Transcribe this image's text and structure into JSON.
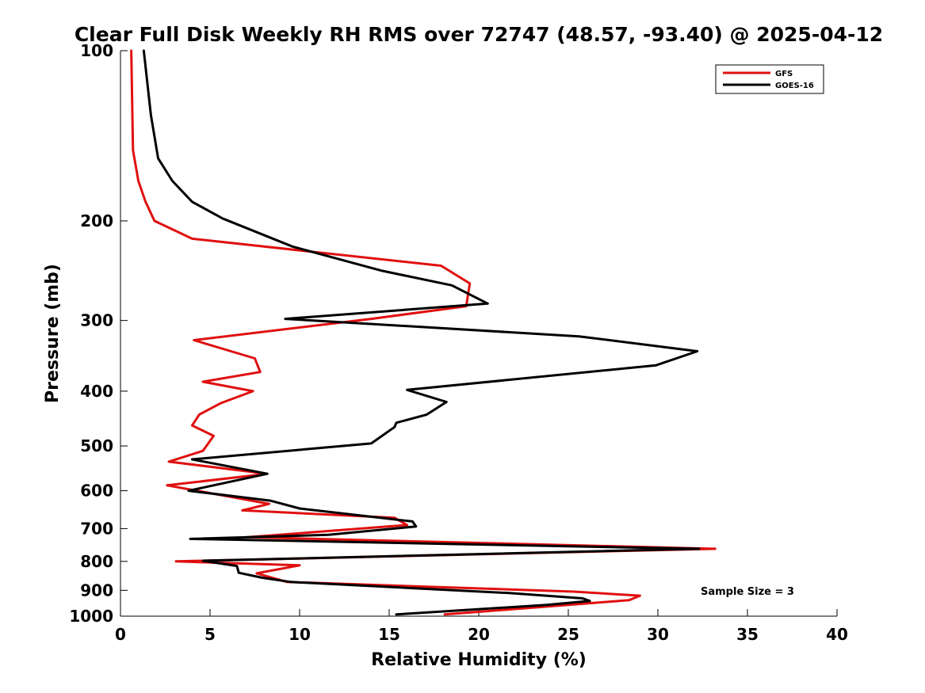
{
  "chart_data": {
    "type": "line",
    "title": "Clear Full Disk Weekly RH RMS over 72747 (48.57, -93.40) @ 2025-04-12",
    "xlabel": "Relative Humidity (%)",
    "ylabel": "Pressure (mb)",
    "xlim": [
      0,
      40
    ],
    "ylim": [
      100,
      1000
    ],
    "yscale": "log",
    "y_reversed": true,
    "xticks": [
      0,
      5,
      10,
      15,
      20,
      25,
      30,
      35,
      40
    ],
    "xtick_labels": [
      "0",
      "5",
      "10",
      "15",
      "20",
      "25",
      "30",
      "35",
      "40"
    ],
    "yticks": [
      100,
      200,
      300,
      400,
      500,
      600,
      700,
      800,
      900,
      1000
    ],
    "ytick_labels": [
      "100",
      "200",
      "300",
      "400",
      "500",
      "600",
      "700",
      "800",
      "900",
      "1000"
    ],
    "grid": false,
    "legend_position": "top-right",
    "annotation": "Sample Size = 3",
    "series": [
      {
        "name": "GFS",
        "color": "#e01010",
        "points": [
          [
            0.6,
            100
          ],
          [
            0.7,
            150
          ],
          [
            1.0,
            170
          ],
          [
            1.4,
            185
          ],
          [
            1.9,
            200
          ],
          [
            4.0,
            215
          ],
          [
            17.9,
            240
          ],
          [
            19.5,
            258
          ],
          [
            19.3,
            283
          ],
          [
            14.0,
            298
          ],
          [
            4.1,
            325
          ],
          [
            7.5,
            350
          ],
          [
            7.8,
            370
          ],
          [
            4.6,
            385
          ],
          [
            7.4,
            400
          ],
          [
            5.6,
            420
          ],
          [
            4.4,
            440
          ],
          [
            4.0,
            460
          ],
          [
            5.2,
            480
          ],
          [
            4.6,
            510
          ],
          [
            2.7,
            533
          ],
          [
            8.2,
            560
          ],
          [
            2.6,
            587
          ],
          [
            8.3,
            633
          ],
          [
            6.8,
            650
          ],
          [
            15.3,
            670
          ],
          [
            16.0,
            690
          ],
          [
            7.1,
            725
          ],
          [
            33.2,
            760
          ],
          [
            3.1,
            800
          ],
          [
            10.0,
            813
          ],
          [
            7.6,
            840
          ],
          [
            9.3,
            870
          ],
          [
            25.3,
            905
          ],
          [
            29.0,
            920
          ],
          [
            28.4,
            937
          ],
          [
            18.1,
            993
          ]
        ]
      },
      {
        "name": "GOES-16",
        "color": "#000000",
        "points": [
          [
            1.3,
            100
          ],
          [
            1.7,
            130
          ],
          [
            2.1,
            155
          ],
          [
            2.9,
            170
          ],
          [
            4.0,
            185
          ],
          [
            5.7,
            198
          ],
          [
            9.6,
            222
          ],
          [
            14.6,
            245
          ],
          [
            18.5,
            260
          ],
          [
            20.5,
            280
          ],
          [
            9.2,
            298
          ],
          [
            25.6,
            320
          ],
          [
            32.2,
            340
          ],
          [
            29.9,
            360
          ],
          [
            16.0,
            398
          ],
          [
            18.2,
            418
          ],
          [
            17.1,
            440
          ],
          [
            15.4,
            455
          ],
          [
            15.3,
            463
          ],
          [
            14.0,
            495
          ],
          [
            4.0,
            528
          ],
          [
            8.2,
            560
          ],
          [
            3.8,
            600
          ],
          [
            8.4,
            625
          ],
          [
            10.0,
            645
          ],
          [
            16.3,
            680
          ],
          [
            16.5,
            694
          ],
          [
            11.6,
            718
          ],
          [
            3.9,
            730
          ],
          [
            32.3,
            760
          ],
          [
            4.6,
            798
          ],
          [
            6.5,
            815
          ],
          [
            6.6,
            838
          ],
          [
            7.9,
            855
          ],
          [
            9.5,
            870
          ],
          [
            21.7,
            910
          ],
          [
            25.8,
            930
          ],
          [
            26.2,
            940
          ],
          [
            23.8,
            955
          ],
          [
            15.4,
            993
          ]
        ]
      }
    ]
  }
}
